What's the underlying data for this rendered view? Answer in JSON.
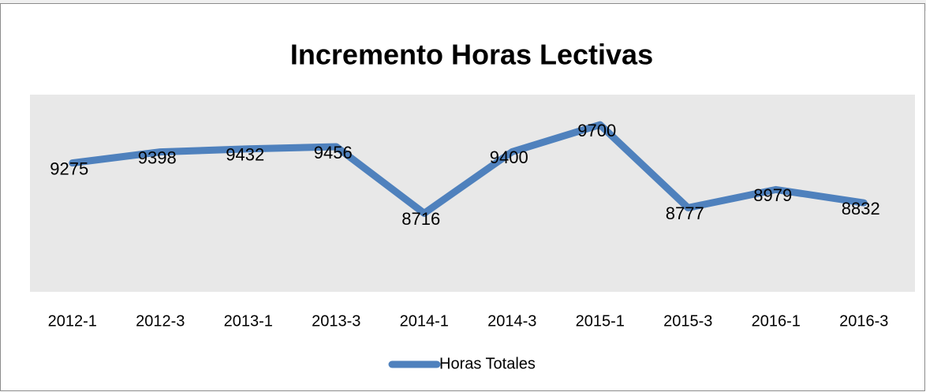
{
  "chart_data": {
    "type": "line",
    "title": "Incremento Horas Lectivas",
    "categories": [
      "2012-1",
      "2012-3",
      "2013-1",
      "2013-3",
      "2014-1",
      "2014-3",
      "2015-1",
      "2015-3",
      "2016-1",
      "2016-3"
    ],
    "series": [
      {
        "name": "Horas Totales",
        "color": "#4f81bd",
        "values": [
          9275,
          9398,
          9432,
          9456,
          8716,
          9400,
          9700,
          8777,
          8979,
          8832
        ]
      }
    ],
    "ylim": [
      8000,
      10000
    ],
    "legend": "bottom"
  }
}
